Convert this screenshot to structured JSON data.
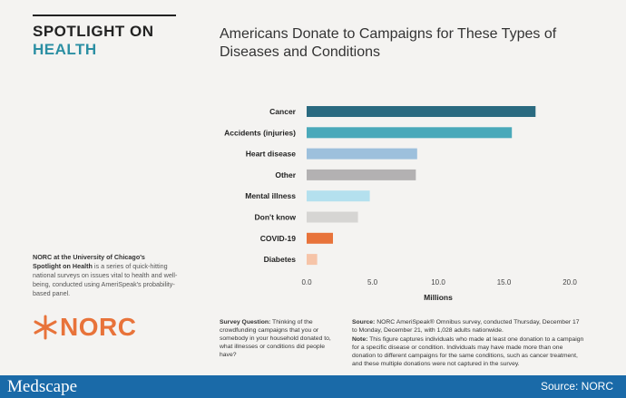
{
  "brand": {
    "spotlight_line1": "SPOTLIGHT ON",
    "spotlight_line2": "HEALTH",
    "blurb_bold1": "NORC at the University of Chicago's",
    "blurb_bold2": "Spotlight on Health",
    "blurb_rest": " is a series of quick-hitting national surveys on issues vital to health and well-being, conducted using AmeriSpeak's probability-based panel.",
    "logo_text": "NORC",
    "logo_icon": "asterisk-icon"
  },
  "notes": {
    "survey_q_label": "Survey Question:",
    "survey_q_text": " Thinking of the crowdfunding campaigns that you or somebody in your household donated to, what illnesses or conditions did people have?",
    "source_label": "Source:",
    "source_text": " NORC AmeriSpeak® Omnibus survey, conducted Thursday, December 17 to Monday, December 21, with 1,028 adults nationwide.",
    "note_label": "Note:",
    "note_text": " This figure captures individuals who made at least one donation to a campaign for a specific disease or condition. Individuals may have made more than one donation to different campaigns for the same conditions, such as cancer treatment, and these multiple donations were not captured in the survey."
  },
  "footer": {
    "publisher": "Medscape",
    "source": "Source: NORC"
  },
  "chart_data": {
    "type": "bar",
    "orientation": "horizontal",
    "title": "Americans Donate to Campaigns for These Types of Diseases and Conditions",
    "xlabel": "Millions",
    "ylabel": "",
    "categories": [
      "Cancer",
      "Accidents (injuries)",
      "Heart disease",
      "Other",
      "Mental illness",
      "Don't know",
      "COVID-19",
      "Diabetes"
    ],
    "values": [
      17.4,
      15.6,
      8.4,
      8.3,
      4.8,
      3.9,
      2.0,
      0.8
    ],
    "colors": [
      "#2a6a80",
      "#4aa9ba",
      "#9dc0dc",
      "#b3b1b2",
      "#b4e0ee",
      "#d6d5d3",
      "#e8733a",
      "#f6c4a8"
    ],
    "xlim": [
      0,
      20
    ],
    "xticks": [
      "0.0",
      "5.0",
      "10.0",
      "15.0",
      "20.0"
    ],
    "grid": false,
    "legend": "none"
  }
}
